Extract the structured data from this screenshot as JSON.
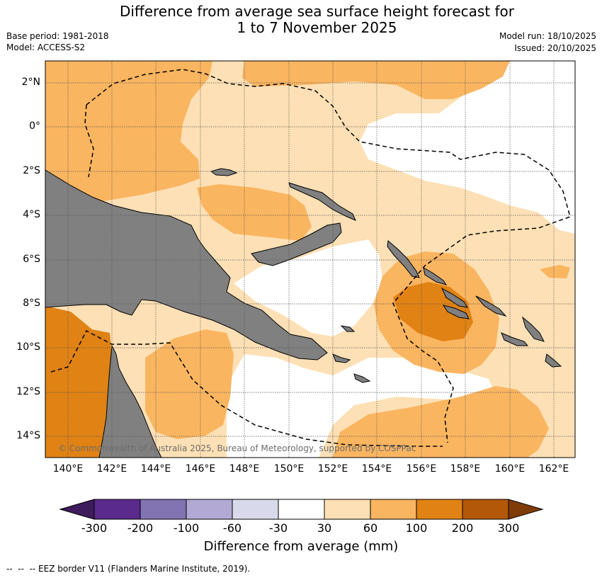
{
  "title_line1": "Difference from average sea surface height forecast for",
  "title_line2": "1 to 7 November 2025",
  "meta": {
    "base_period": "Base period: 1981-2018",
    "model": "Model: ACCESS-S2",
    "model_run": "Model run: 18/10/2025",
    "issued": "Issued: 20/10/2025"
  },
  "lat_labels": [
    "2°N",
    "0°",
    "2°S",
    "4°S",
    "6°S",
    "8°S",
    "10°S",
    "12°S",
    "14°S"
  ],
  "lon_labels": [
    "140°E",
    "142°E",
    "144°E",
    "146°E",
    "148°E",
    "150°E",
    "152°E",
    "154°E",
    "156°E",
    "158°E",
    "160°E",
    "162°E"
  ],
  "copyright": "© Commonwealth of Australia 2025, Bureau of Meteorology, supported by COSPPac",
  "colorbar": {
    "title": "Difference from average (mm)",
    "ticks": [
      "-300",
      "-200",
      "-100",
      "-60",
      "-30",
      "30",
      "60",
      "100",
      "200",
      "300"
    ],
    "colors": [
      "#3d1b5c",
      "#5a2a8c",
      "#8273b2",
      "#b2aad4",
      "#d8d9ea",
      "#ffffff",
      "#fde0b5",
      "#fab560",
      "#e08214",
      "#b35808",
      "#7f3b08"
    ]
  },
  "footer": "--  --  -- EEZ border V11 (Flanders Marine Institute, 2019)."
}
